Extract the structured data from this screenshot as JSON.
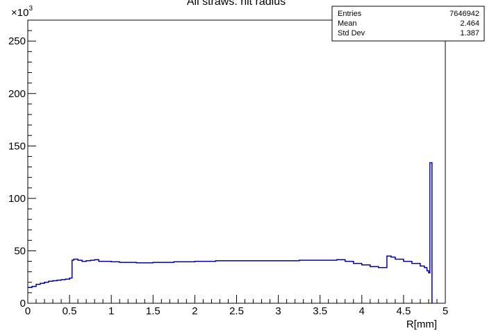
{
  "chart_data": {
    "type": "line",
    "title": "All straws: hit radius",
    "xlabel": "R[mm]",
    "ylabel": "",
    "y_multiplier_label": "×10",
    "y_multiplier_exponent": "3",
    "xlim": [
      0,
      5
    ],
    "ylim": [
      0,
      270
    ],
    "grid": false,
    "x_ticks": [
      "0",
      "0.5",
      "1",
      "1.5",
      "2",
      "2.5",
      "3",
      "3.5",
      "4",
      "4.5",
      "5"
    ],
    "x_tick_values": [
      0,
      0.5,
      1,
      1.5,
      2,
      2.5,
      3,
      3.5,
      4,
      4.5,
      5
    ],
    "y_ticks": [
      "0",
      "50",
      "100",
      "150",
      "200",
      "250"
    ],
    "y_tick_values": [
      0,
      50,
      100,
      150,
      200,
      250
    ],
    "series": [
      {
        "color": "#000099",
        "x": [
          0,
          0.05,
          0.1,
          0.15,
          0.2,
          0.25,
          0.3,
          0.35,
          0.4,
          0.45,
          0.5,
          0.53,
          0.55,
          0.6,
          0.65,
          0.7,
          0.75,
          0.8,
          0.85,
          0.9,
          1.0,
          1.1,
          1.2,
          1.3,
          1.4,
          1.5,
          1.75,
          2.0,
          2.25,
          2.5,
          2.75,
          3.0,
          3.25,
          3.5,
          3.7,
          3.8,
          3.9,
          4.0,
          4.1,
          4.2,
          4.25,
          4.3,
          4.35,
          4.4,
          4.5,
          4.6,
          4.7,
          4.75,
          4.78,
          4.8,
          4.815,
          4.84
        ],
        "y": [
          15,
          16,
          18,
          19,
          20,
          21,
          21.5,
          22,
          22.5,
          23,
          24,
          41,
          42,
          41,
          40,
          40.5,
          41,
          41.5,
          40,
          40,
          39.5,
          39,
          39,
          38.5,
          38.5,
          39,
          39.5,
          40,
          40.5,
          40.5,
          40.5,
          40.5,
          41,
          41,
          41.5,
          40,
          38,
          36.5,
          35,
          34,
          34,
          45,
          44,
          42,
          40,
          38,
          35.5,
          34,
          31,
          29,
          134,
          0
        ]
      }
    ]
  },
  "stats": {
    "rows": [
      {
        "label": "Entries",
        "value": "7646942"
      },
      {
        "label": "Mean",
        "value": "2.464"
      },
      {
        "label": "Std Dev",
        "value": "1.387"
      }
    ]
  }
}
